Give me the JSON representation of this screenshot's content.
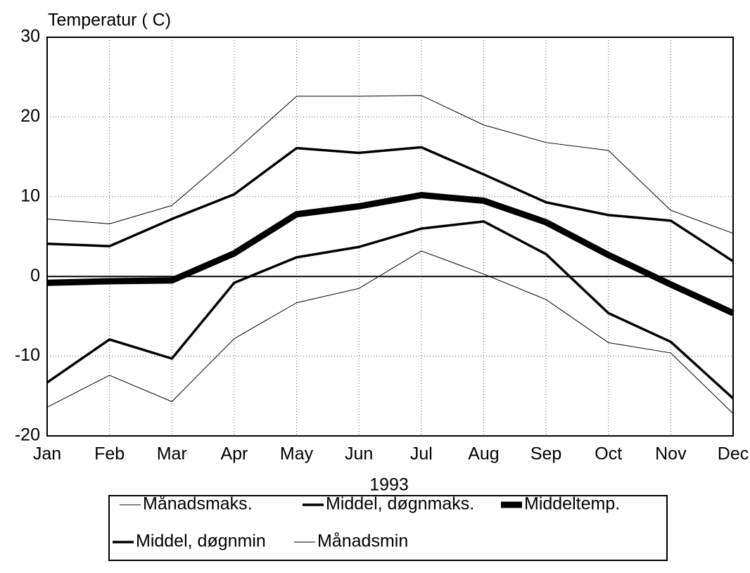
{
  "chart_data": {
    "type": "line",
    "y_title": "Temperatur ( C)",
    "x_title": "1993",
    "categories": [
      "Jan",
      "Feb",
      "Mar",
      "Apr",
      "May",
      "Jun",
      "Jul",
      "Aug",
      "Sep",
      "Oct",
      "Nov",
      "Dec"
    ],
    "series": [
      {
        "name": "Månadsmaks.",
        "color": "#000000",
        "width": 1,
        "values": [
          7.2,
          6.6,
          8.9,
          15.6,
          22.6,
          22.6,
          22.7,
          19,
          16.8,
          15.8,
          8.3,
          5.4
        ]
      },
      {
        "name": "Middel, døgnmaks.",
        "color": "#000000",
        "width": 3.5,
        "values": [
          4.1,
          3.8,
          7.2,
          10.3,
          16.1,
          15.5,
          16.2,
          12.8,
          9.3,
          7.7,
          7.0,
          1.9
        ]
      },
      {
        "name": "Middeltemp.",
        "color": "#000000",
        "width": 9,
        "values": [
          -0.8,
          -0.6,
          -0.5,
          2.9,
          7.8,
          8.8,
          10.2,
          9.5,
          6.8,
          2.7,
          -1.0,
          -4.6
        ]
      },
      {
        "name": "Middel, døgnmin",
        "color": "#000000",
        "width": 3.5,
        "values": [
          -13.3,
          -7.9,
          -10.3,
          -0.8,
          2.4,
          3.7,
          6.0,
          6.9,
          2.8,
          -4.6,
          -8.2,
          -15.3
        ]
      },
      {
        "name": "Månadsmin",
        "color": "#000000",
        "width": 1,
        "values": [
          -16.4,
          -12.4,
          -15.7,
          -7.8,
          -3.3,
          -1.5,
          3.2,
          0.3,
          -2.9,
          -8.3,
          -9.6,
          -17.2
        ]
      }
    ],
    "ylim": [
      -20,
      30
    ],
    "yticks": [
      -20,
      -10,
      0,
      10,
      20,
      30
    ],
    "grid": true
  }
}
